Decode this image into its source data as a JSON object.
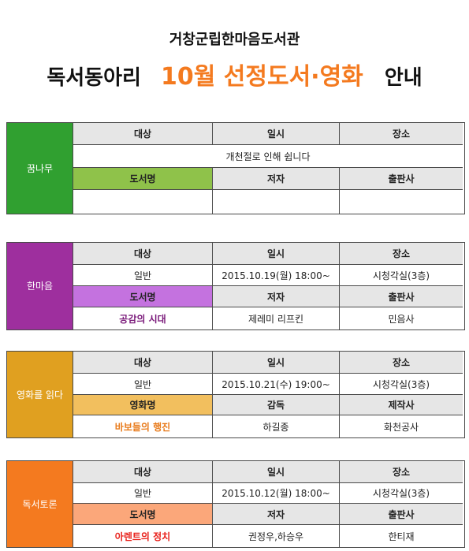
{
  "header": {
    "org": "거창군립한마음도서관",
    "title_pre": "독서동아리",
    "title_accent": "10월  선정도서·영화",
    "title_post": "안내",
    "accent_color": "#f47a1f"
  },
  "blocks": [
    {
      "name": "꿈나무",
      "color": "#30a030",
      "title_bg": "#8fc24a",
      "title_color": "#222222",
      "h_target": "대상",
      "h_date": "일시",
      "h_place": "장소",
      "notice": "개천절로 인해 쉽니다",
      "h_book": "도서명",
      "h_author": "저자",
      "h_publisher": "출판사",
      "book": "",
      "author": "",
      "publisher": ""
    },
    {
      "name": "한마음",
      "color": "#9e2f9e",
      "title_bg": "#c472df",
      "title_color": "#7a1a7a",
      "h_target": "대상",
      "h_date": "일시",
      "h_place": "장소",
      "target": "일반",
      "date": "2015.10.19(월)  18:00~",
      "place": "시청각실(3층)",
      "h_book": "도서명",
      "h_author": "저자",
      "h_publisher": "출판사",
      "book": "공감의 시대",
      "author": "제레미 리프킨",
      "publisher": "민음사"
    },
    {
      "name": "영화를 읽다",
      "color": "#e0a020",
      "title_bg": "#f2bf5e",
      "title_color": "#e87a1a",
      "h_target": "대상",
      "h_date": "일시",
      "h_place": "장소",
      "target": "일반",
      "date": "2015.10.21(수)  19:00~",
      "place": "시청각실(3층)",
      "h_book": "영화명",
      "h_author": "감독",
      "h_publisher": "제작사",
      "book": "바보들의 행진",
      "author": "하길종",
      "publisher": "화천공사"
    },
    {
      "name": "독서토론",
      "color": "#f47a1f",
      "title_bg": "#fba77a",
      "title_color": "#e8201a",
      "h_target": "대상",
      "h_date": "일시",
      "h_place": "장소",
      "target": "일반",
      "date": "2015.10.12(월)  18:00~",
      "place": "시청각실(3층)",
      "h_book": "도서명",
      "h_author": "저자",
      "h_publisher": "출판사",
      "book": "아렌트의 정치",
      "author": "권정우,하승우",
      "publisher": "한티재"
    }
  ]
}
